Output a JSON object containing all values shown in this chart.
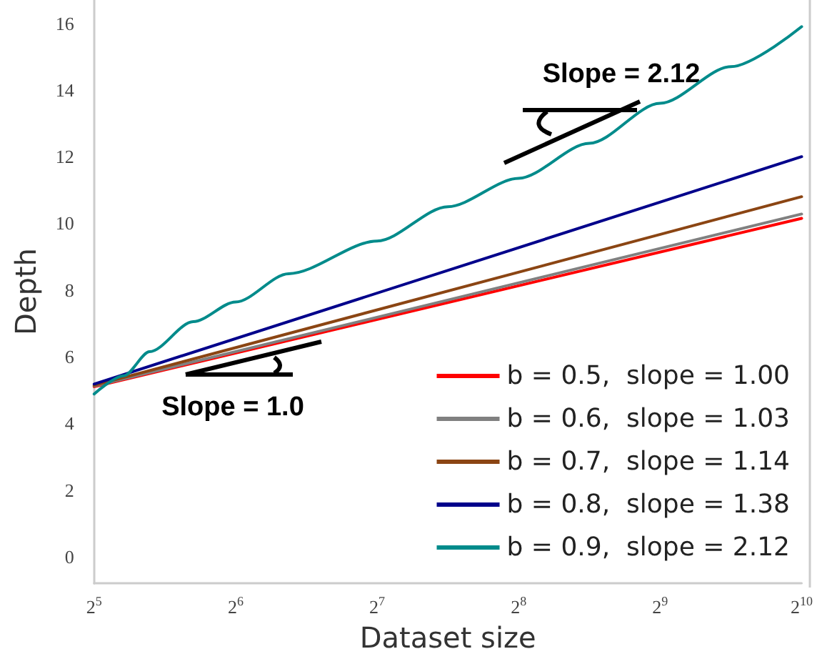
{
  "chart_data": {
    "type": "line",
    "xlabel": "Dataset size",
    "ylabel": "Depth",
    "log": "x",
    "xlim": [
      32,
      1024
    ],
    "ylim": [
      -0.8,
      16.7
    ],
    "xticks": [
      {
        "value": 32,
        "label": "2$^{5}$"
      },
      {
        "value": 64,
        "label": "2$^{6}$"
      },
      {
        "value": 128,
        "label": "2$^{7}$"
      },
      {
        "value": 256,
        "label": "2$^{8}$"
      },
      {
        "value": 512,
        "label": "2$^{9}$"
      },
      {
        "value": 1024,
        "label": "2$^{10}$"
      }
    ],
    "yticks": [
      0,
      2,
      4,
      6,
      8,
      10,
      12,
      14,
      16
    ],
    "grid": false,
    "legend": "bottom right",
    "marker": "none",
    "line_style": "solid",
    "series": [
      {
        "name": "b = 0.5,  slope = 1.00",
        "color": "#ff0000",
        "x": [
          32,
          1024
        ],
        "values": [
          5.1,
          10.15
        ]
      },
      {
        "name": "b = 0.6,  slope = 1.03",
        "color": "#808080",
        "x": [
          32,
          1024
        ],
        "values": [
          5.12,
          10.28
        ]
      },
      {
        "name": "b = 0.7,  slope = 1.14",
        "color": "#8b4513",
        "x": [
          32,
          1024
        ],
        "values": [
          5.14,
          10.8
        ]
      },
      {
        "name": "b = 0.8,  slope = 1.38",
        "color": "#00008b",
        "x": [
          32,
          1024
        ],
        "values": [
          5.18,
          12.0
        ]
      },
      {
        "name": "b = 0.9,  slope = 2.12",
        "color": "#008b8b",
        "x": [
          32,
          37,
          42,
          52,
          64,
          83,
          128,
          181,
          256,
          362,
          512,
          724,
          1024
        ],
        "values": [
          4.88,
          5.43,
          6.15,
          7.05,
          7.64,
          8.49,
          9.47,
          10.5,
          11.35,
          12.4,
          13.6,
          14.7,
          15.9
        ]
      }
    ],
    "annotations": [
      "Slope = 1.0",
      "Slope = 2.12"
    ]
  }
}
